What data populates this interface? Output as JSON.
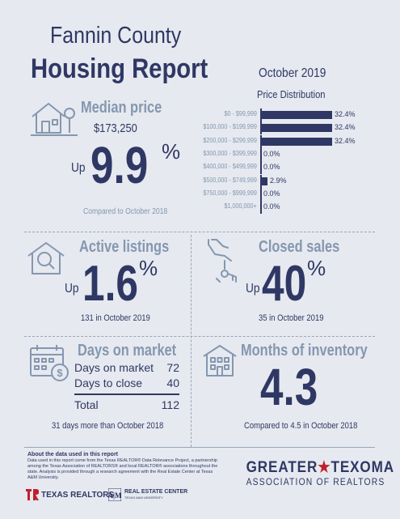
{
  "header": {
    "title_line1": "Fannin County",
    "title_line2": "Housing Report",
    "month": "October 2019"
  },
  "price_distribution": {
    "title": "Price Distribution",
    "chart_data": {
      "type": "bar",
      "title": "Price Distribution",
      "categories": [
        "$0 - $99,999",
        "$100,000 - $199,999",
        "$200,000 - $299,999",
        "$300,000 - $399,999",
        "$400,000 - $499,999",
        "$500,000 - $749,999",
        "$750,000 - $999,999",
        "$1,000,000+"
      ],
      "values": [
        32.4,
        32.4,
        32.4,
        0.0,
        0.0,
        2.9,
        0.0,
        0.0
      ],
      "value_labels": [
        "32.4%",
        "32.4%",
        "32.4%",
        "0.0%",
        "0.0%",
        "2.9%",
        "0.0%",
        "0.0%"
      ],
      "xlim": [
        0,
        32.4
      ]
    }
  },
  "median_price": {
    "heading": "Median price",
    "value": "$173,250",
    "direction": "Up",
    "change": "9.9",
    "pct": "%",
    "compare": "Compared to October 2018"
  },
  "active_listings": {
    "heading": "Active listings",
    "direction": "Up",
    "change": "1.6",
    "pct": "%",
    "note": "131 in October 2019"
  },
  "closed_sales": {
    "heading": "Closed sales",
    "direction": "Up",
    "change": "40",
    "pct": "%",
    "note": "35 in October 2019"
  },
  "days_on_market": {
    "heading": "Days on market",
    "rows": [
      {
        "label": "Days on market",
        "value": "72"
      },
      {
        "label": "Days to close",
        "value": "40"
      }
    ],
    "total_label": "Total",
    "total_value": "112",
    "note": "31 days more than October 2018"
  },
  "months_inventory": {
    "heading": "Months of inventory",
    "value": "4.3",
    "note": "Compared to 4.5 in October 2018"
  },
  "footer": {
    "about_heading": "About the data used in this report",
    "about_text": "Data used in this report come from the Texas REALTOR® Data Relevance Project, a partnership among the Texas Association of REALTORS® and local REALTOR® associations throughout the state. Analysis is provided through a research agreement with the Real Estate Center at Texas A&M University.",
    "texas_realtors": "TEXAS REALTORS",
    "rec": "REAL ESTATE CENTER",
    "rec_sub": "TEXAS A&M UNIVERSITY",
    "gt_line1a": "GREATER",
    "gt_line1b": "TEXOMA",
    "gt_line2": "ASSOCIATION OF REALTORS"
  }
}
